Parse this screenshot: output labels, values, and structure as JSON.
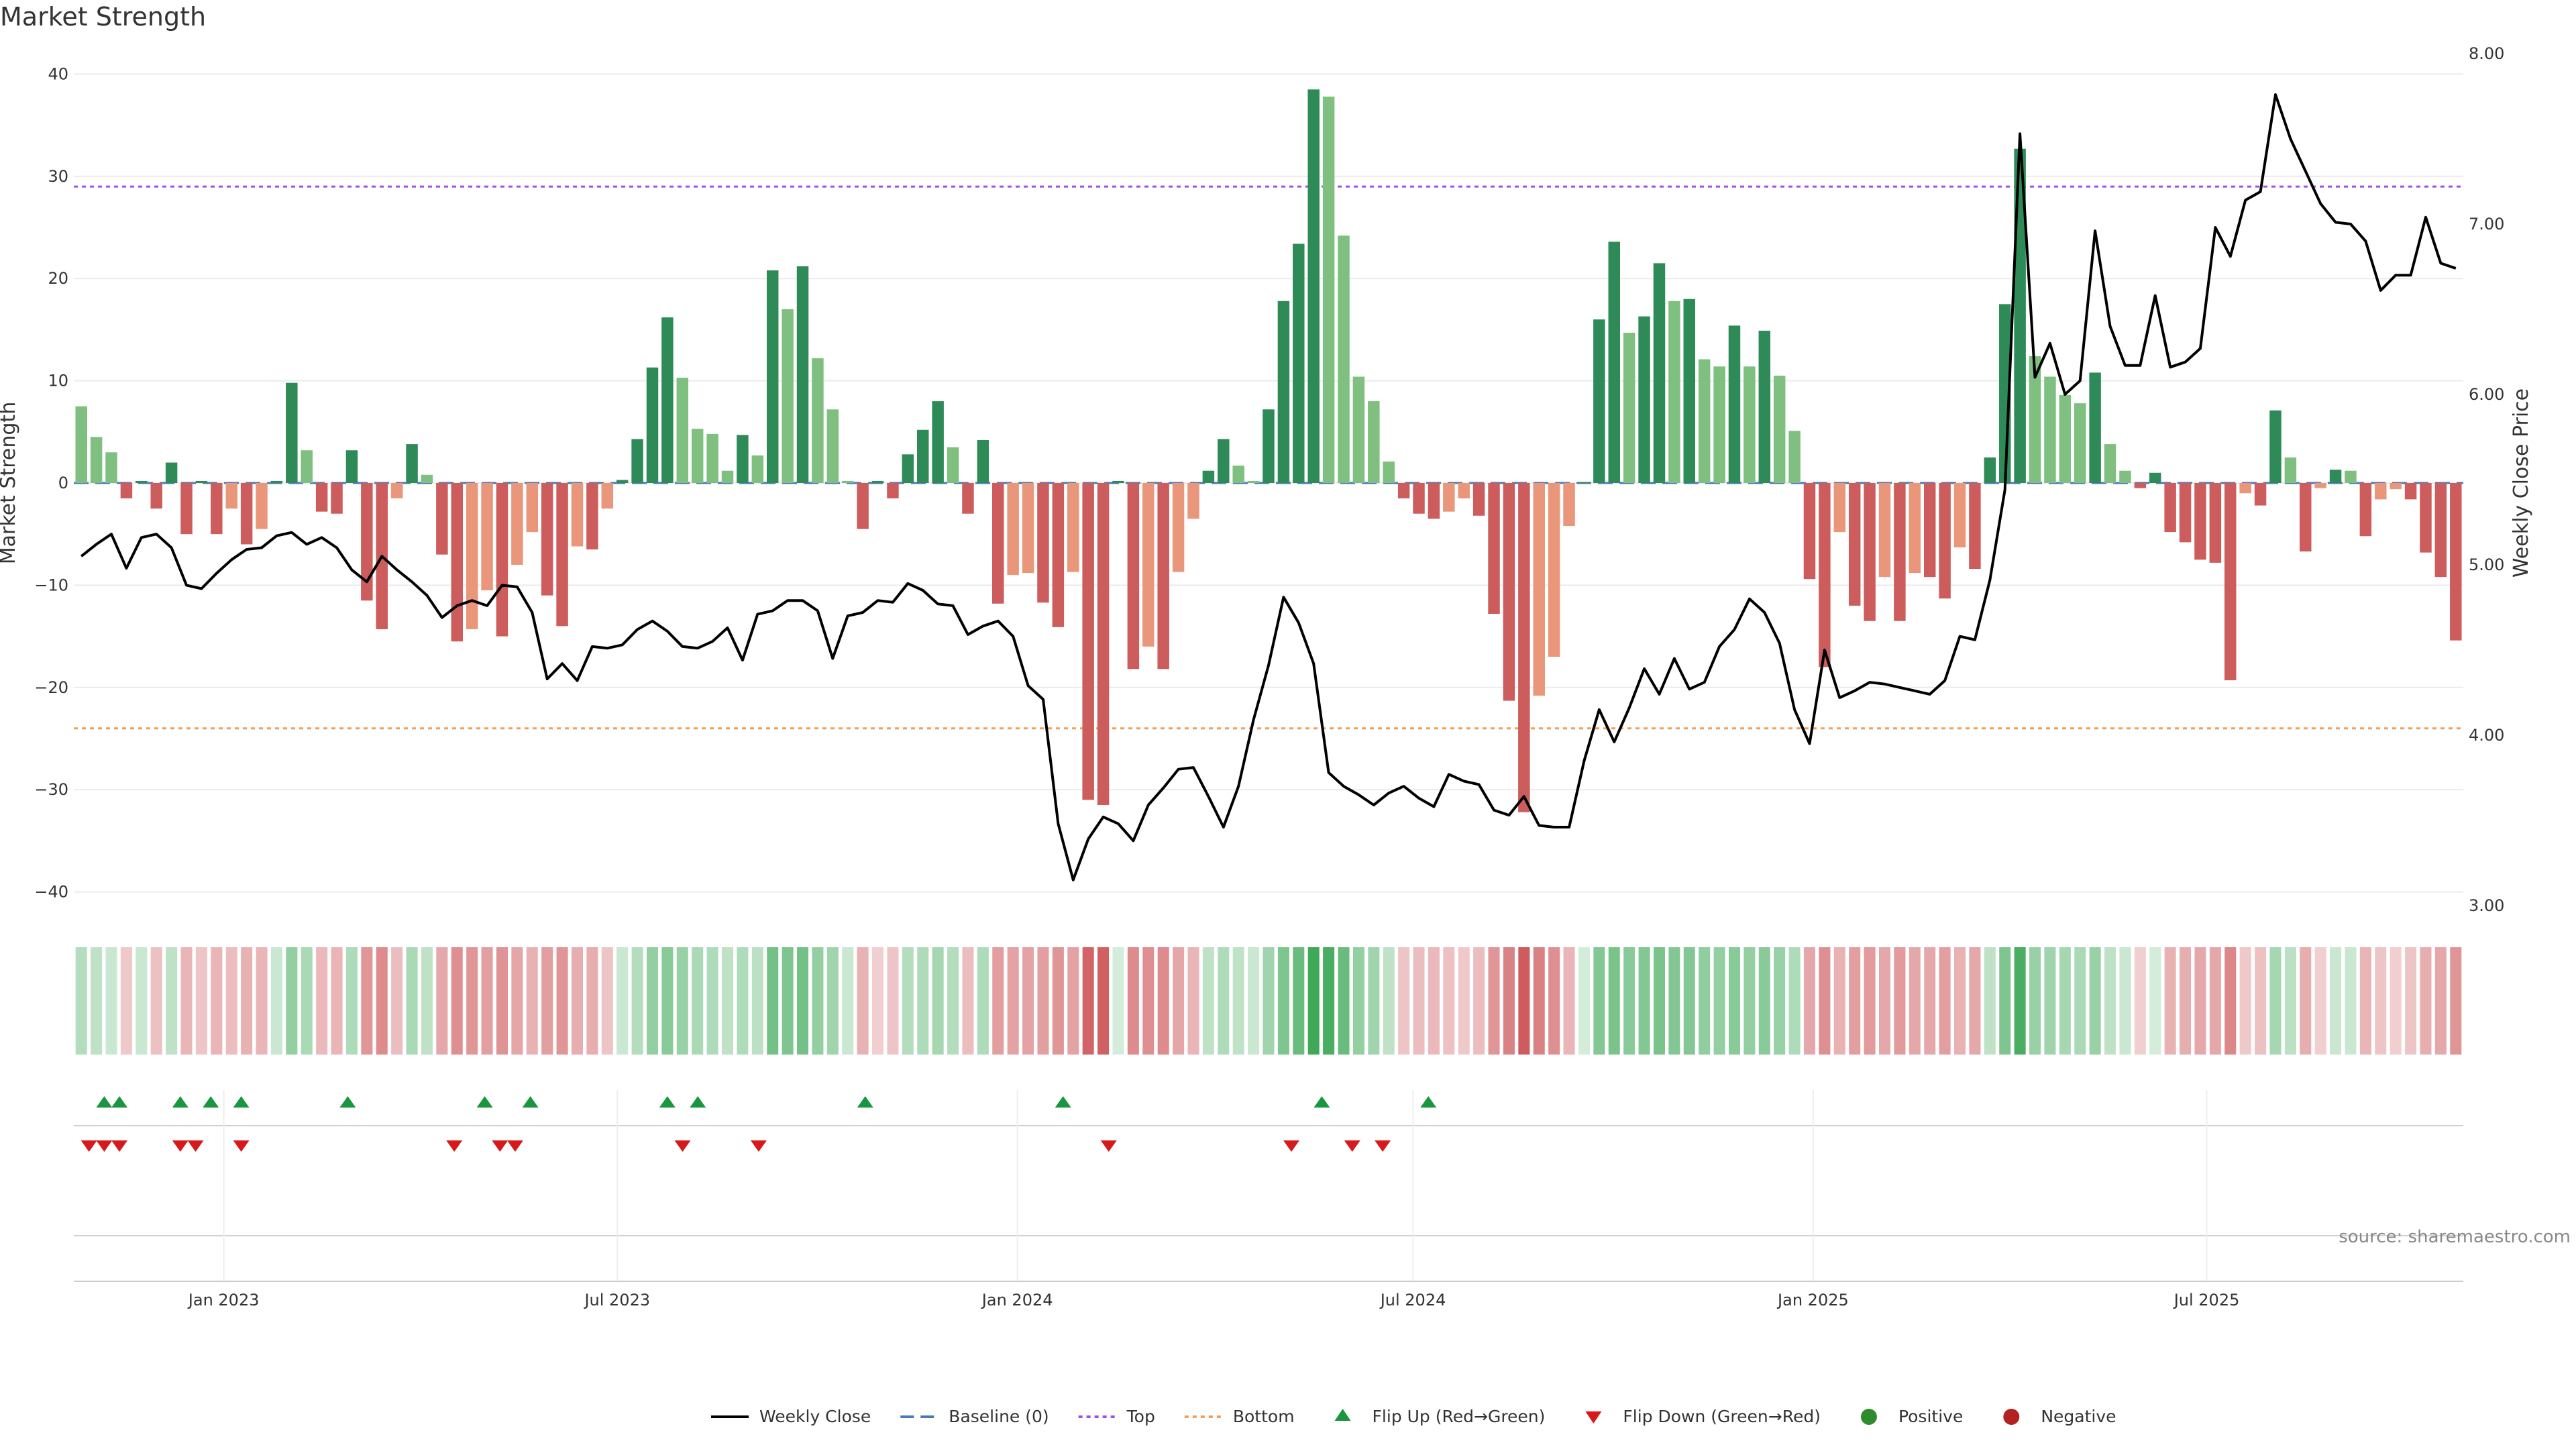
{
  "chart_data": {
    "type": "bar",
    "title": "Market Strength",
    "ylabel": "Market Strength",
    "y2label": "Weekly Close Price",
    "ylim": [
      -42,
      42
    ],
    "y2lim": [
      2.96,
      8.0
    ],
    "yticks": [
      40,
      30,
      20,
      10,
      0,
      -10,
      -20,
      -30,
      -40
    ],
    "yticks_labels": [
      "40",
      "30",
      "20",
      "10",
      "0",
      "−10",
      "−20",
      "−30",
      "−40"
    ],
    "y2ticks": [
      8.0,
      7.0,
      6.0,
      5.0,
      4.0,
      3.0
    ],
    "y2ticks_labels": [
      "8.00",
      "7.00",
      "6.00",
      "5.00",
      "4.00",
      "3.00"
    ],
    "x_start": "2022-10-24",
    "x_end": "2025-10-27",
    "x_ticks": [
      {
        "date": "2023-01-01",
        "label": "Jan 2023"
      },
      {
        "date": "2023-07-01",
        "label": "Jul 2023"
      },
      {
        "date": "2024-01-01",
        "label": "Jan 2024"
      },
      {
        "date": "2024-07-01",
        "label": "Jul 2024"
      },
      {
        "date": "2025-01-01",
        "label": "Jan 2025"
      },
      {
        "date": "2025-07-01",
        "label": "Jul 2025"
      }
    ],
    "top_line": 29,
    "bottom_line": -24,
    "grid": true,
    "source": "source: sharemaestro.com",
    "strength_values": [
      7.5,
      4.5,
      3.0,
      -1.5,
      0.2,
      -2.5,
      2.0,
      -5.0,
      0.2,
      -5.0,
      -2.5,
      -6.0,
      -4.5,
      0.2,
      9.8,
      3.2,
      -2.8,
      -3.0,
      3.2,
      -11.5,
      -14.3,
      -1.5,
      3.8,
      0.8,
      -7.0,
      -15.5,
      -14.3,
      -10.5,
      -15.0,
      -8.0,
      -4.8,
      -11.0,
      -14.0,
      -6.2,
      -6.5,
      -2.5,
      0.3,
      4.3,
      11.3,
      16.2,
      10.3,
      5.3,
      4.8,
      1.2,
      4.7,
      2.7,
      20.8,
      17.0,
      21.2,
      12.2,
      7.2,
      0.2,
      -4.5,
      0.2,
      -1.5,
      2.8,
      5.2,
      8.0,
      3.5,
      -3.0,
      4.2,
      -11.8,
      -9.0,
      -8.8,
      -11.7,
      -14.1,
      -8.7,
      -31.0,
      -31.5,
      0.2,
      -18.2,
      -16.0,
      -18.2,
      -8.7,
      -3.5,
      1.2,
      4.3,
      1.7,
      0.2,
      7.2,
      17.8,
      23.4,
      38.5,
      37.8,
      24.2,
      10.4,
      8.0,
      2.1,
      -1.5,
      -3.0,
      -3.5,
      -2.8,
      -1.5,
      -3.2,
      -12.8,
      -21.3,
      -32.2,
      -20.8,
      -17.0,
      -4.2,
      0.1,
      16.0,
      23.6,
      14.7,
      16.3,
      21.5,
      17.8,
      18.0,
      12.1,
      11.4,
      15.4,
      11.4,
      14.9,
      10.5,
      5.1,
      -9.4,
      -18.0,
      -4.8,
      -12.0,
      -13.5,
      -9.2,
      -13.5,
      -8.8,
      -9.2,
      -11.3,
      -6.3,
      -8.4,
      2.5,
      17.5,
      32.7,
      12.4,
      10.4,
      8.6,
      7.8,
      10.8,
      3.8,
      1.2,
      -0.5,
      1.0,
      -4.8,
      -5.8,
      -7.5,
      -7.8,
      -19.3,
      -1.0,
      -2.2,
      7.1,
      2.5,
      -6.7,
      -0.5,
      1.3,
      1.2,
      -5.2,
      -1.6,
      -0.6,
      -1.6,
      -6.8,
      -9.2,
      -15.4
    ],
    "close_prices": [
      5.05,
      5.12,
      5.18,
      4.98,
      5.16,
      5.18,
      5.1,
      4.88,
      4.86,
      4.95,
      5.03,
      5.09,
      5.1,
      5.17,
      5.19,
      5.12,
      5.16,
      5.1,
      4.97,
      4.9,
      5.05,
      4.97,
      4.9,
      4.82,
      4.69,
      4.76,
      4.79,
      4.76,
      4.88,
      4.87,
      4.72,
      4.33,
      4.42,
      4.32,
      4.52,
      4.51,
      4.53,
      4.62,
      4.67,
      4.61,
      4.52,
      4.51,
      4.55,
      4.63,
      4.44,
      4.71,
      4.73,
      4.79,
      4.79,
      4.73,
      4.45,
      4.7,
      4.72,
      4.79,
      4.78,
      4.89,
      4.85,
      4.77,
      4.76,
      4.59,
      4.64,
      4.67,
      4.58,
      4.29,
      4.21,
      3.48,
      3.15,
      3.39,
      3.52,
      3.48,
      3.38,
      3.59,
      3.69,
      3.8,
      3.81,
      3.64,
      3.46,
      3.7,
      4.09,
      4.41,
      4.81,
      4.66,
      4.42,
      3.78,
      3.7,
      3.65,
      3.59,
      3.66,
      3.7,
      3.63,
      3.58,
      3.77,
      3.73,
      3.71,
      3.56,
      3.53,
      3.64,
      3.47,
      3.46,
      3.46,
      3.85,
      4.15,
      3.96,
      4.16,
      4.39,
      4.24,
      4.45,
      4.27,
      4.31,
      4.52,
      4.62,
      4.8,
      4.72,
      4.54,
      4.15,
      3.95,
      4.5,
      4.22,
      4.26,
      4.31,
      4.3,
      4.28,
      4.26,
      4.24,
      4.32,
      4.58,
      4.56,
      4.91,
      5.44,
      7.53,
      6.1,
      6.3,
      6.0,
      6.08,
      6.96,
      6.4,
      6.17,
      6.17,
      6.58,
      6.16,
      6.19,
      6.27,
      6.98,
      6.81,
      7.14,
      7.19,
      7.76,
      7.5,
      7.31,
      7.12,
      7.01,
      7.0,
      6.9,
      6.61,
      6.7,
      6.7,
      7.04,
      6.77,
      6.74
    ],
    "heat_values": [
      0.35,
      0.3,
      0.25,
      -0.28,
      0.25,
      -0.32,
      0.3,
      -0.38,
      -0.3,
      -0.38,
      -0.34,
      -0.4,
      -0.38,
      0.25,
      0.5,
      0.4,
      -0.36,
      -0.38,
      0.38,
      -0.55,
      -0.6,
      -0.34,
      0.4,
      0.3,
      -0.45,
      -0.58,
      -0.55,
      -0.5,
      -0.56,
      -0.46,
      -0.4,
      -0.5,
      -0.55,
      -0.42,
      -0.42,
      -0.3,
      0.25,
      0.35,
      0.5,
      0.55,
      0.48,
      0.4,
      0.38,
      0.3,
      0.38,
      0.32,
      0.65,
      0.6,
      0.65,
      0.5,
      0.45,
      0.25,
      -0.4,
      -0.25,
      -0.3,
      0.35,
      0.38,
      0.42,
      0.35,
      -0.34,
      0.38,
      -0.5,
      -0.48,
      -0.48,
      -0.5,
      -0.55,
      -0.48,
      -0.8,
      -0.82,
      0.2,
      -0.6,
      -0.58,
      -0.6,
      -0.46,
      -0.38,
      0.3,
      0.38,
      0.3,
      0.25,
      0.45,
      0.6,
      0.7,
      0.9,
      0.85,
      0.7,
      0.5,
      0.45,
      0.3,
      -0.3,
      -0.34,
      -0.36,
      -0.32,
      -0.28,
      -0.34,
      -0.55,
      -0.65,
      -0.85,
      -0.65,
      -0.58,
      -0.38,
      0.2,
      0.58,
      0.62,
      0.55,
      0.58,
      0.62,
      0.58,
      0.58,
      0.52,
      0.5,
      0.55,
      0.5,
      0.55,
      0.48,
      0.38,
      -0.45,
      -0.58,
      -0.4,
      -0.5,
      -0.52,
      -0.45,
      -0.52,
      -0.45,
      -0.45,
      -0.5,
      -0.4,
      -0.45,
      0.3,
      0.6,
      0.85,
      0.48,
      0.45,
      0.42,
      0.4,
      0.48,
      0.3,
      0.25,
      -0.25,
      0.2,
      -0.4,
      -0.42,
      -0.45,
      -0.45,
      -0.62,
      -0.28,
      -0.32,
      0.42,
      0.32,
      -0.42,
      -0.25,
      0.25,
      0.25,
      -0.38,
      -0.3,
      -0.25,
      -0.3,
      -0.42,
      -0.45,
      -0.55
    ],
    "flip_up_weeks": [
      2,
      3,
      7,
      9,
      11,
      18,
      27,
      30,
      39,
      41,
      52,
      65,
      82,
      89
    ],
    "flip_down_weeks": [
      1,
      2,
      3,
      7,
      8,
      11,
      25,
      28,
      29,
      40,
      45,
      68,
      80,
      84,
      86
    ],
    "legend": [
      {
        "label": "Weekly Close",
        "kind": "line",
        "color": "#000000"
      },
      {
        "label": "Baseline (0)",
        "kind": "dash",
        "color": "#4a78b8"
      },
      {
        "label": "Top",
        "kind": "dot",
        "color": "#a050e0"
      },
      {
        "label": "Bottom",
        "kind": "dot",
        "color": "#f0a050"
      },
      {
        "label": "Flip Up (Red→Green)",
        "kind": "tri-up",
        "color": "#1a9641"
      },
      {
        "label": "Flip Down (Green→Red)",
        "kind": "tri-down",
        "color": "#d7191c"
      },
      {
        "label": "Positive",
        "kind": "circle",
        "color": "#2e8b2e"
      },
      {
        "label": "Negative",
        "kind": "circle",
        "color": "#b22222"
      }
    ],
    "colors": {
      "pos_strong": "#2e8b57",
      "pos_weak": "#7fbf7f",
      "neg_strong": "#cd5c5c",
      "neg_weak": "#e9967a",
      "price": "#000000",
      "top": "#a050e0",
      "bottom": "#f0a050",
      "baseline": "#4a78b8",
      "flip_up": "#1a9641",
      "flip_down": "#d7191c"
    }
  }
}
